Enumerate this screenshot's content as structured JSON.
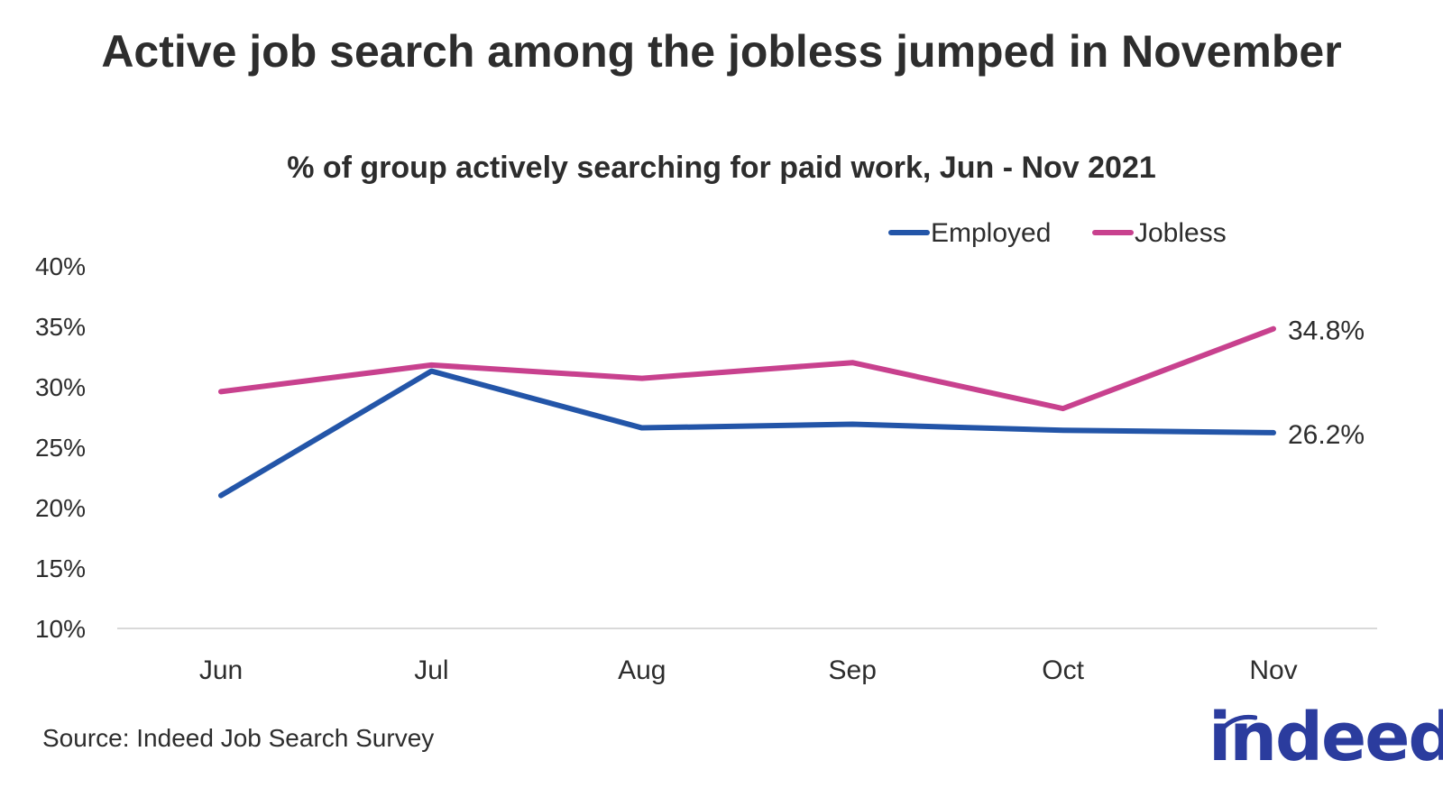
{
  "header": {
    "title": "Active job search among the jobless jumped in November",
    "subtitle": "% of group actively searching for paid work, Jun - Nov 2021"
  },
  "footer": {
    "source": "Source: Indeed Job Search Survey",
    "logo_text": "indeed"
  },
  "colors": {
    "employed": "#2355a8",
    "jobless": "#c8418e",
    "axis": "#d9d9d9",
    "logo": "#2b3c9e"
  },
  "chart_data": {
    "type": "line",
    "title": "Active job search among the jobless jumped in November",
    "subtitle": "% of group actively searching for paid work, Jun - Nov 2021",
    "categories": [
      "Jun",
      "Jul",
      "Aug",
      "Sep",
      "Oct",
      "Nov"
    ],
    "y_ticks": [
      "10%",
      "15%",
      "20%",
      "25%",
      "30%",
      "35%",
      "40%"
    ],
    "ylim": [
      10,
      40
    ],
    "grid": false,
    "legend": "top-right",
    "series": [
      {
        "name": "Employed",
        "color": "#2355a8",
        "values": [
          21.0,
          31.3,
          26.6,
          26.9,
          26.4,
          26.2
        ],
        "end_label": "26.2%"
      },
      {
        "name": "Jobless",
        "color": "#c8418e",
        "values": [
          29.6,
          31.8,
          30.7,
          32.0,
          28.2,
          34.8
        ],
        "end_label": "34.8%"
      }
    ]
  }
}
